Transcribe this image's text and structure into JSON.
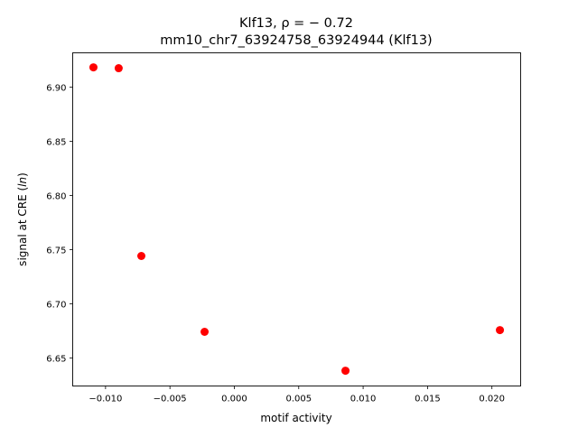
{
  "chart_data": {
    "type": "scatter",
    "title_line1": "Klf13, ρ = − 0.72",
    "title_line2": "mm10_chr7_63924758_63924944 (Klf13)",
    "xlabel": "motif activity",
    "ylabel_prefix": "signal at CRE (",
    "ylabel_italic": "ln",
    "ylabel_suffix": ")",
    "xlim": [
      -0.01255,
      0.02223
    ],
    "ylim": [
      6.6242,
      6.9317
    ],
    "xticks": [
      -0.01,
      -0.005,
      0.0,
      0.005,
      0.01,
      0.015,
      0.02
    ],
    "xtick_labels": [
      "−0.010",
      "−0.005",
      "0.000",
      "0.005",
      "0.010",
      "0.015",
      "0.020"
    ],
    "yticks": [
      6.65,
      6.7,
      6.75,
      6.8,
      6.85,
      6.9
    ],
    "ytick_labels": [
      "6.65",
      "6.70",
      "6.75",
      "6.80",
      "6.85",
      "6.90"
    ],
    "grid": false,
    "marker_color": "#ff0000",
    "points": [
      {
        "x": -0.01094,
        "y": 6.9183
      },
      {
        "x": -0.00898,
        "y": 6.9175
      },
      {
        "x": -0.00722,
        "y": 6.7442
      },
      {
        "x": -0.00231,
        "y": 6.6742
      },
      {
        "x": 0.00863,
        "y": 6.6383
      },
      {
        "x": 0.02062,
        "y": 6.6758
      }
    ]
  }
}
